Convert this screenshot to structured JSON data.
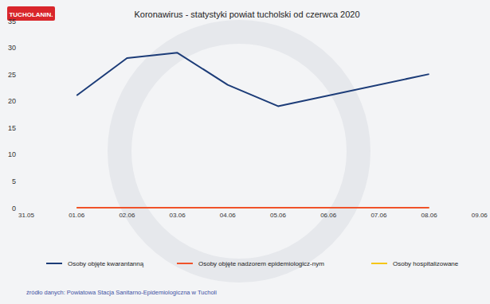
{
  "chart_data": {
    "type": "line",
    "title": "Koronawirus - statystyki powiat tucholski od czerwca 2020",
    "annotations": [
      "TUCHOLANIN.",
      "źródło danych: Powiatowa Stacja Sanitarno-Epidemiologiczna w Tucholi"
    ],
    "x": [
      "31.05",
      "01.06",
      "02.06",
      "03.06",
      "04.06",
      "05.06",
      "06.06",
      "07.06",
      "08.06",
      "09.06"
    ],
    "ylim": [
      0,
      35
    ],
    "yticks": [
      0,
      5,
      10,
      15,
      20,
      25,
      30,
      35
    ],
    "grid": false,
    "legend": "bottom",
    "series": [
      {
        "name": "Osoby objęte kwarantanną",
        "color": "#1c3c78",
        "x": [
          "01.06",
          "02.06",
          "03.06",
          "04.06",
          "05.06",
          "08.06"
        ],
        "values": [
          21,
          28,
          29,
          23,
          19,
          25
        ]
      },
      {
        "name": "Osoby objęte nadzorem epidemiologicz-nym",
        "color": "#f0522a",
        "x": [
          "01.06",
          "02.06",
          "03.06",
          "04.06",
          "05.06",
          "08.06"
        ],
        "values": [
          0,
          0,
          0,
          0,
          0,
          0
        ]
      },
      {
        "name": "Osoby hospitalizowane",
        "color": "#f5c518",
        "x": [
          "01.06",
          "02.06",
          "03.06",
          "04.06",
          "05.06",
          "08.06"
        ],
        "values": [
          0,
          0,
          0,
          0,
          0,
          0
        ]
      }
    ]
  }
}
